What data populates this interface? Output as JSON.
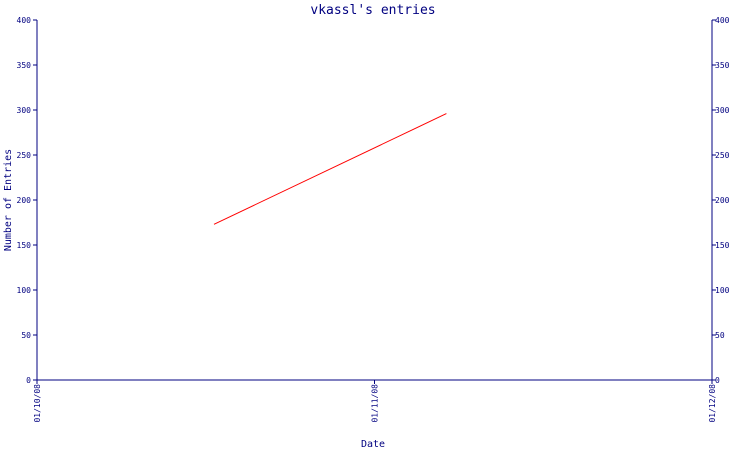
{
  "chart_data": {
    "type": "line",
    "title": "vkassl's entries",
    "xlabel": "Date",
    "ylabel": "Number of Entries",
    "x_ticks": [
      "01/10/08",
      "01/11/08",
      "01/12/08"
    ],
    "y_ticks": [
      0,
      50,
      100,
      150,
      200,
      250,
      300,
      350,
      400
    ],
    "ylim": [
      0,
      400
    ],
    "xlim": [
      "2008-10-01",
      "2008-12-01"
    ],
    "grid": false,
    "series": [
      {
        "x": [
          "2008-10-17",
          "2008-11-07"
        ],
        "values": [
          173,
          296
        ]
      }
    ],
    "colors": {
      "axes": "#000080",
      "title": "#000080",
      "line": "#ff0000"
    }
  }
}
